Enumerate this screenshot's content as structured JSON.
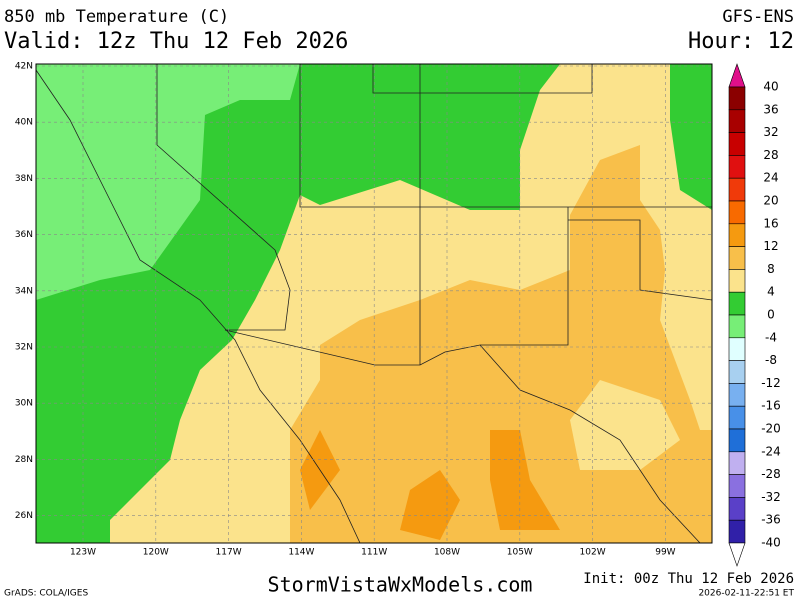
{
  "header": {
    "title": "850 mb Temperature (C)",
    "valid": "Valid: 12z Thu 12 Feb 2026",
    "model": "GFS-ENS",
    "hour": "Hour: 12"
  },
  "map": {
    "lat_labels": [
      "42N",
      "40N",
      "38N",
      "36N",
      "34N",
      "32N",
      "30N",
      "28N",
      "26N"
    ],
    "lon_labels": [
      "123W",
      "120W",
      "117W",
      "114W",
      "111W",
      "108W",
      "105W",
      "102W",
      "99W"
    ]
  },
  "colorbar": {
    "labels": [
      "40",
      "36",
      "32",
      "28",
      "24",
      "20",
      "16",
      "12",
      "8",
      "4",
      "0",
      "-4",
      "-8",
      "-12",
      "-16",
      "-20",
      "-24",
      "-28",
      "-32",
      "-36",
      "-40"
    ],
    "colors": [
      "#e0108a",
      "#8b0000",
      "#a80000",
      "#c80000",
      "#e01010",
      "#f03a0a",
      "#f86a00",
      "#f59a10",
      "#f8bf4a",
      "#fbe38c",
      "#33cc33",
      "#77ee77",
      "#e0ffff",
      "#a8d0f0",
      "#78b0f0",
      "#4890e8",
      "#1f6fd8",
      "#c0b0f0",
      "#8a70e0",
      "#5a40c8",
      "#3020a8",
      "#1a0880",
      "#ffffff"
    ]
  },
  "footer": {
    "credit": "GrADS: COLA/IGES",
    "site": "StormVistaWxModels.com",
    "init": "Init: 00z Thu 12 Feb 2026",
    "timestamp": "2026-02-11-22:51 ET"
  }
}
